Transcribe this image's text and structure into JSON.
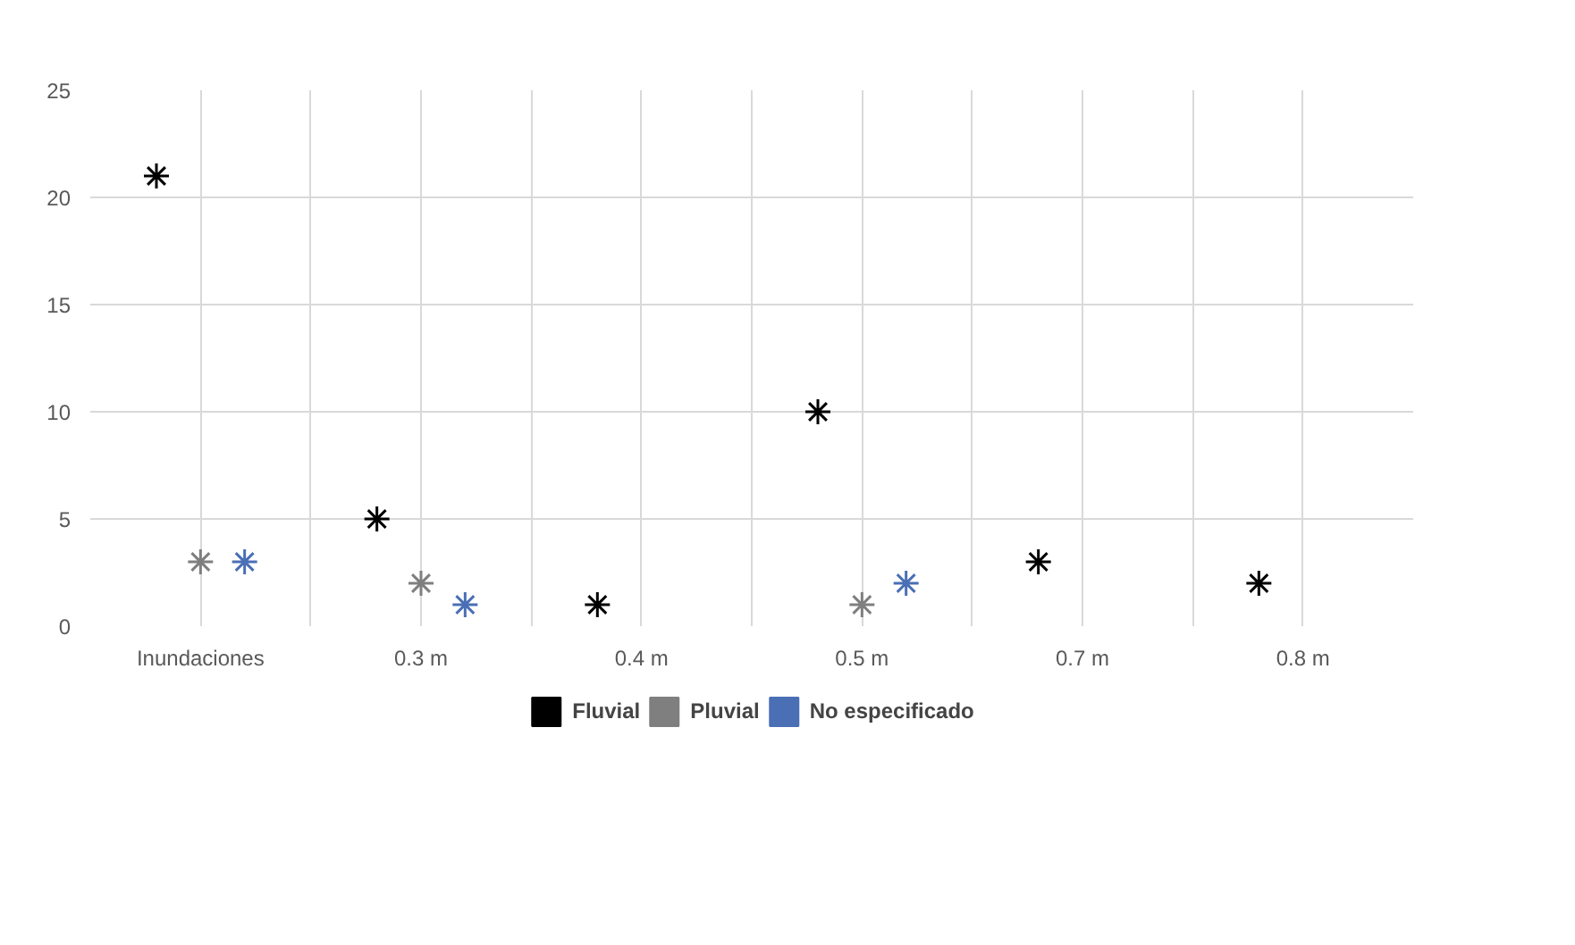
{
  "chart_data": {
    "type": "scatter",
    "categories": [
      "Inundaciones",
      "0.3 m",
      "0.4 m",
      "0.5 m",
      "0.7 m",
      "0.8 m"
    ],
    "series": [
      {
        "name": "Fluvial",
        "color": "#000000",
        "values": [
          21,
          5,
          1,
          10,
          3,
          2
        ]
      },
      {
        "name": "Pluvial",
        "color": "#7f7f7f",
        "values": [
          3,
          2,
          null,
          1,
          null,
          null
        ]
      },
      {
        "name": "No especificado",
        "color": "#4a6fb5",
        "values": [
          3,
          1,
          null,
          2,
          null,
          null
        ]
      }
    ],
    "ylim": [
      0,
      25
    ],
    "yticks": [
      0,
      5,
      10,
      15,
      20,
      25
    ],
    "grid": true,
    "legend": "bottom",
    "marker": "cross"
  }
}
